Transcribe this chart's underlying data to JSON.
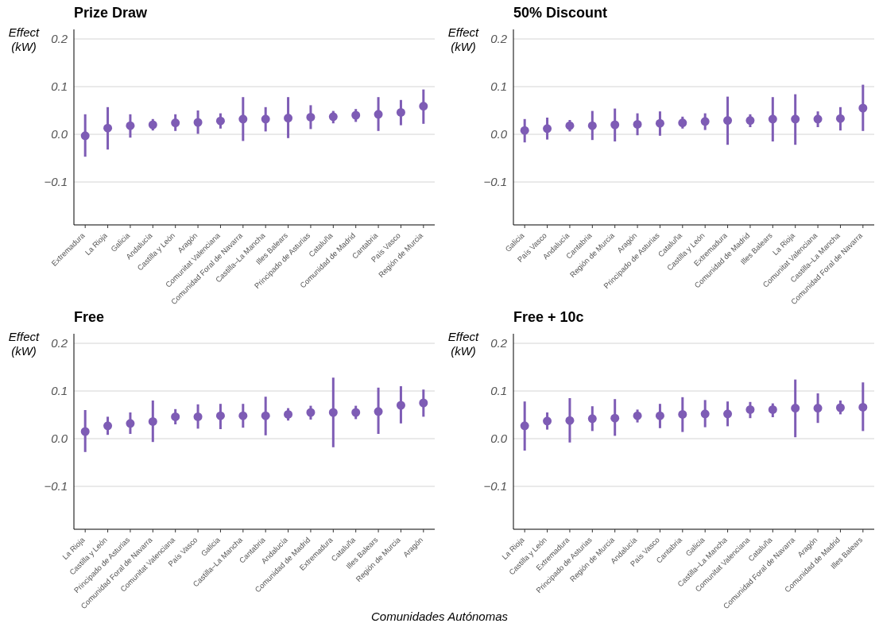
{
  "chart_data": [
    {
      "type": "scatter",
      "title": "Prize Draw",
      "ylabel": "Effect (kW)",
      "marker": "circle",
      "grid": "y",
      "ylim": [
        -0.19,
        0.22
      ],
      "yticks": [
        {
          "value": -0.1,
          "label": "−0.1"
        },
        {
          "value": 0,
          "label": "0.0"
        },
        {
          "value": 0.1,
          "label": "0.1"
        },
        {
          "value": 0.2,
          "label": "0.2"
        }
      ],
      "categories": [
        "Extremadura",
        "La Rioja",
        "Galicia",
        "Andalucía",
        "Castilla y León",
        "Aragón",
        "Comunitat Valenciana",
        "Comunidad Foral de Navarra",
        "Castilla–La Mancha",
        "Illes Balears",
        "Principado de Asturias",
        "Cataluña",
        "Comunidad de Madrid",
        "Cantabria",
        "País Vasco",
        "Región de Murcia"
      ],
      "series": [
        {
          "color": "#7e5cb5",
          "values": [
            -0.003,
            0.013,
            0.018,
            0.02,
            0.024,
            0.025,
            0.028,
            0.032,
            0.032,
            0.034,
            0.036,
            0.037,
            0.04,
            0.042,
            0.046,
            0.059
          ],
          "errors": [
            [
              -0.047,
              0.042
            ],
            [
              -0.032,
              0.057
            ],
            [
              -0.007,
              0.042
            ],
            [
              0.008,
              0.032
            ],
            [
              0.007,
              0.042
            ],
            [
              0.001,
              0.05
            ],
            [
              0.012,
              0.044
            ],
            [
              -0.014,
              0.078
            ],
            [
              0.006,
              0.057
            ],
            [
              -0.008,
              0.078
            ],
            [
              0.011,
              0.061
            ],
            [
              0.023,
              0.049
            ],
            [
              0.026,
              0.053
            ],
            [
              0.007,
              0.078
            ],
            [
              0.019,
              0.072
            ],
            [
              0.022,
              0.094
            ]
          ]
        }
      ]
    },
    {
      "type": "scatter",
      "title": "50% Discount",
      "ylabel": "Effect (kW)",
      "marker": "circle",
      "grid": "y",
      "ylim": [
        -0.19,
        0.22
      ],
      "yticks": [
        {
          "value": -0.1,
          "label": "−0.1"
        },
        {
          "value": 0,
          "label": "0.0"
        },
        {
          "value": 0.1,
          "label": "0.1"
        },
        {
          "value": 0.2,
          "label": "0.2"
        }
      ],
      "categories": [
        "Galicia",
        "País Vasco",
        "Andalucía",
        "Cantabria",
        "Región de Murcia",
        "Aragón",
        "Principado de Asturias",
        "Cataluña",
        "Castilla y León",
        "Extremadura",
        "Comunidad de Madrid",
        "Illes Balears",
        "La Rioja",
        "Comunitat Valenciana",
        "Castilla–La Mancha",
        "Comunidad Foral de Navarra"
      ],
      "series": [
        {
          "color": "#7e5cb5",
          "values": [
            0.008,
            0.012,
            0.018,
            0.018,
            0.02,
            0.021,
            0.023,
            0.024,
            0.027,
            0.029,
            0.029,
            0.032,
            0.032,
            0.032,
            0.033,
            0.055
          ],
          "errors": [
            [
              -0.017,
              0.032
            ],
            [
              -0.011,
              0.035
            ],
            [
              0.006,
              0.03
            ],
            [
              -0.012,
              0.049
            ],
            [
              -0.015,
              0.054
            ],
            [
              -0.002,
              0.044
            ],
            [
              -0.003,
              0.048
            ],
            [
              0.012,
              0.037
            ],
            [
              0.009,
              0.044
            ],
            [
              -0.022,
              0.079
            ],
            [
              0.015,
              0.042
            ],
            [
              -0.015,
              0.078
            ],
            [
              -0.022,
              0.084
            ],
            [
              0.015,
              0.048
            ],
            [
              0.008,
              0.057
            ],
            [
              0.007,
              0.104
            ]
          ]
        }
      ]
    },
    {
      "type": "scatter",
      "title": "Free",
      "ylabel": "Effect (kW)",
      "marker": "circle",
      "grid": "y",
      "ylim": [
        -0.19,
        0.22
      ],
      "yticks": [
        {
          "value": -0.1,
          "label": "−0.1"
        },
        {
          "value": 0,
          "label": "0.0"
        },
        {
          "value": 0.1,
          "label": "0.1"
        },
        {
          "value": 0.2,
          "label": "0.2"
        }
      ],
      "categories": [
        "La Rioja",
        "Castilla y León",
        "Principado de Asturias",
        "Comunidad Foral de Navarra",
        "Comunitat Valenciana",
        "País Vasco",
        "Galicia",
        "Castilla–La Mancha",
        "Cantabria",
        "Andalucía",
        "Comunidad de Madrid",
        "Extremadura",
        "Cataluña",
        "Illes Balears",
        "Región de Murcia",
        "Aragón"
      ],
      "series": [
        {
          "color": "#7e5cb5",
          "values": [
            0.015,
            0.027,
            0.032,
            0.036,
            0.046,
            0.046,
            0.048,
            0.048,
            0.048,
            0.051,
            0.055,
            0.055,
            0.055,
            0.057,
            0.07,
            0.075
          ],
          "errors": [
            [
              -0.028,
              0.06
            ],
            [
              0.008,
              0.046
            ],
            [
              0.01,
              0.055
            ],
            [
              -0.007,
              0.08
            ],
            [
              0.03,
              0.062
            ],
            [
              0.021,
              0.072
            ],
            [
              0.02,
              0.073
            ],
            [
              0.023,
              0.073
            ],
            [
              0.007,
              0.088
            ],
            [
              0.038,
              0.064
            ],
            [
              0.04,
              0.069
            ],
            [
              -0.018,
              0.128
            ],
            [
              0.041,
              0.069
            ],
            [
              0.01,
              0.107
            ],
            [
              0.032,
              0.11
            ],
            [
              0.046,
              0.103
            ]
          ]
        }
      ]
    },
    {
      "type": "scatter",
      "title": "Free + 10c",
      "ylabel": "Effect (kW)",
      "xlabel": "Comunidades Autónomas",
      "marker": "circle",
      "grid": "y",
      "ylim": [
        -0.19,
        0.22
      ],
      "yticks": [
        {
          "value": -0.1,
          "label": "−0.1"
        },
        {
          "value": 0,
          "label": "0.0"
        },
        {
          "value": 0.1,
          "label": "0.1"
        },
        {
          "value": 0.2,
          "label": "0.2"
        }
      ],
      "categories": [
        "La Rioja",
        "Castilla y León",
        "Extremadura",
        "Principado de Asturias",
        "Región de Murcia",
        "Andalucía",
        "País Vasco",
        "Cantabria",
        "Galicia",
        "Castilla–La Mancha",
        "Comunitat Valenciana",
        "Cataluña",
        "Comunidad Foral de Navarra",
        "Aragón",
        "Comunidad de Madrid",
        "Illes Balears"
      ],
      "series": [
        {
          "color": "#7e5cb5",
          "values": [
            0.027,
            0.037,
            0.038,
            0.042,
            0.043,
            0.048,
            0.048,
            0.051,
            0.052,
            0.052,
            0.061,
            0.061,
            0.064,
            0.064,
            0.065,
            0.066
          ],
          "errors": [
            [
              -0.025,
              0.078
            ],
            [
              0.019,
              0.055
            ],
            [
              -0.008,
              0.085
            ],
            [
              0.016,
              0.068
            ],
            [
              0.006,
              0.083
            ],
            [
              0.034,
              0.061
            ],
            [
              0.022,
              0.073
            ],
            [
              0.014,
              0.087
            ],
            [
              0.024,
              0.081
            ],
            [
              0.026,
              0.078
            ],
            [
              0.043,
              0.077
            ],
            [
              0.045,
              0.074
            ],
            [
              0.003,
              0.124
            ],
            [
              0.033,
              0.095
            ],
            [
              0.051,
              0.08
            ],
            [
              0.016,
              0.118
            ]
          ]
        }
      ]
    }
  ]
}
